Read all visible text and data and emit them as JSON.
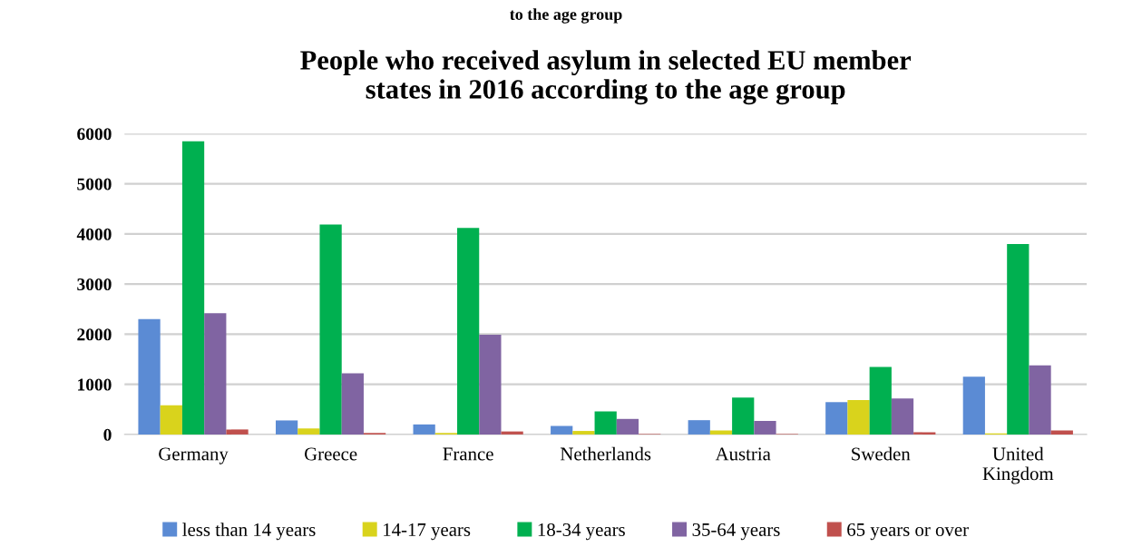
{
  "chart_data": {
    "type": "bar",
    "title": "People who received asylum in selected EU member\nstates in 2016 according to the age group",
    "annotations": [
      "to the age group"
    ],
    "categories": [
      "Germany",
      "Greece",
      "France",
      "Netherlands",
      "Austria",
      "Sweden",
      "United\nKingdom"
    ],
    "series": [
      {
        "name": "less than 14 years",
        "color": "#5b8bd4",
        "values": [
          2300,
          280,
          200,
          170,
          285,
          645,
          1150
        ]
      },
      {
        "name": "14-17 years",
        "color": "#d9d31c",
        "values": [
          580,
          120,
          30,
          70,
          80,
          685,
          20
        ]
      },
      {
        "name": "18-34 years",
        "color": "#00b050",
        "values": [
          5850,
          4190,
          4120,
          460,
          735,
          1345,
          3800
        ]
      },
      {
        "name": "35-64 years",
        "color": "#8064a2",
        "values": [
          2420,
          1220,
          1990,
          310,
          270,
          720,
          1380
        ]
      },
      {
        "name": "65 years or over",
        "color": "#c0504d",
        "values": [
          100,
          30,
          60,
          10,
          10,
          45,
          80
        ]
      }
    ],
    "ylim": [
      0,
      6000
    ],
    "yticks": [
      0,
      1000,
      2000,
      3000,
      4000,
      5000,
      6000
    ],
    "grid": "y",
    "legend": "bottom"
  }
}
